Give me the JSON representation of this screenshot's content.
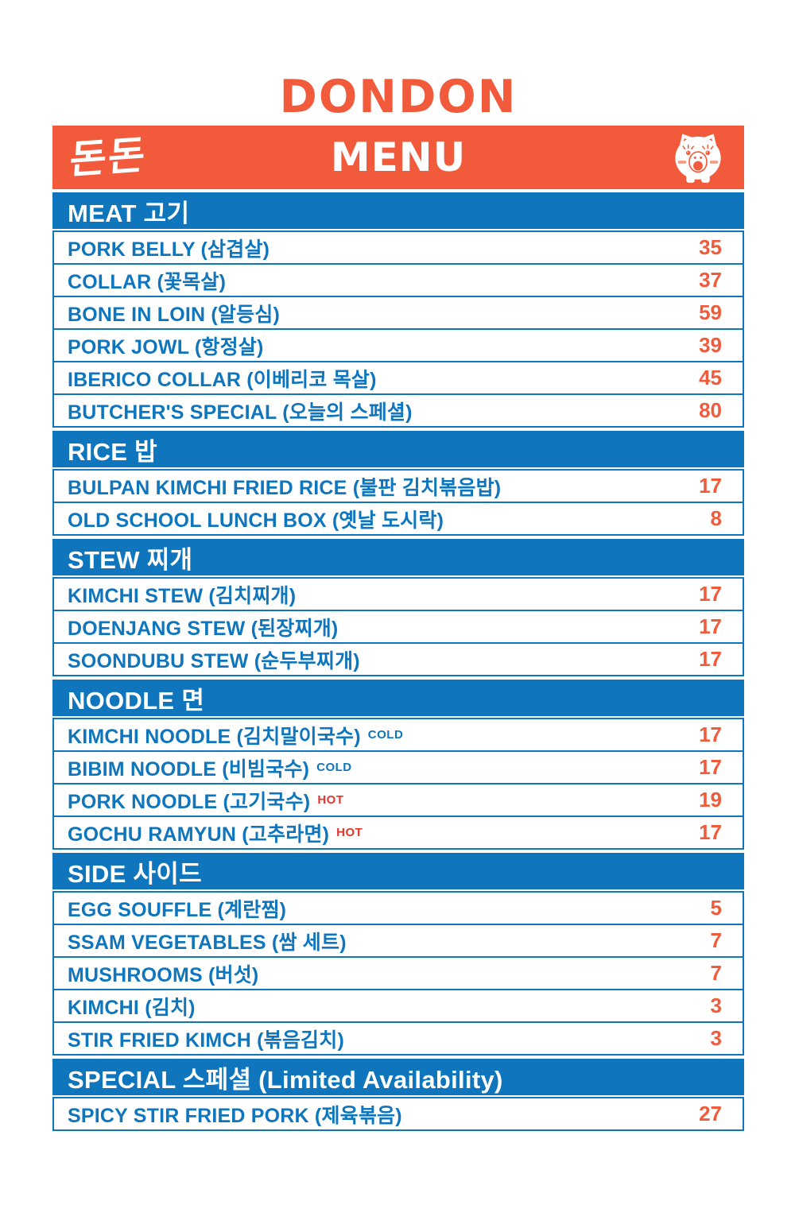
{
  "brand": {
    "wordmark": "DONDON",
    "korean_logo": "돈돈",
    "menu_title": "MENU",
    "pig_icon": "pig-icon"
  },
  "colors": {
    "blue": "#0F76BD",
    "orange": "#F15B3B",
    "hot_red": "#E5342B",
    "cheek_pink": "#F59B82",
    "row_background": "#FFFFFF"
  },
  "sections": [
    {
      "title": "MEAT 고기",
      "items": [
        {
          "name": "PORK BELLY (삼겹살)",
          "price": "35"
        },
        {
          "name": "COLLAR (꽃목살)",
          "price": "37"
        },
        {
          "name": "BONE IN LOIN (알등심)",
          "price": "59"
        },
        {
          "name": "PORK JOWL (항정살)",
          "price": "39"
        },
        {
          "name": "IBERICO COLLAR (이베리코 목살)",
          "price": "45"
        },
        {
          "name": "BUTCHER'S SPECIAL (오늘의 스페셜)",
          "price": "80"
        }
      ]
    },
    {
      "title": "RICE 밥",
      "items": [
        {
          "name": "BULPAN KIMCHI FRIED RICE (불판 김치볶음밥)",
          "price": "17"
        },
        {
          "name": "OLD SCHOOL LUNCH BOX (옛날 도시락)",
          "price": "8"
        }
      ]
    },
    {
      "title": "STEW 찌개",
      "items": [
        {
          "name": "KIMCHI STEW (김치찌개)",
          "price": "17"
        },
        {
          "name": "DOENJANG STEW (된장찌개)",
          "price": "17"
        },
        {
          "name": "SOONDUBU STEW (순두부찌개)",
          "price": "17"
        }
      ]
    },
    {
      "title": "NOODLE 면",
      "items": [
        {
          "name": "KIMCHI NOODLE (김치말이국수)",
          "badge": "COLD",
          "badge_style": "cold",
          "price": "17"
        },
        {
          "name": "BIBIM NOODLE (비빔국수)",
          "badge": "COLD",
          "badge_style": "cold",
          "price": "17"
        },
        {
          "name": "PORK NOODLE (고기국수)",
          "badge": "HOT",
          "badge_style": "hot",
          "price": "19"
        },
        {
          "name": "GOCHU RAMYUN (고추라면)",
          "badge": "HOT",
          "badge_style": "hot",
          "price": "17"
        }
      ]
    },
    {
      "title": "SIDE 사이드",
      "items": [
        {
          "name": "EGG SOUFFLE (계란찜)",
          "price": "5"
        },
        {
          "name": "SSAM VEGETABLES (쌈 세트)",
          "price": "7"
        },
        {
          "name": "MUSHROOMS (버섯)",
          "price": "7"
        },
        {
          "name": "KIMCHI (김치)",
          "price": "3"
        },
        {
          "name": "STIR FRIED KIMCH (볶음김치)",
          "price": "3"
        }
      ]
    },
    {
      "title": "SPECIAL 스페셜 (Limited Availability)",
      "items": [
        {
          "name": "SPICY STIR FRIED PORK (제육볶음)",
          "price": "27"
        }
      ]
    }
  ]
}
